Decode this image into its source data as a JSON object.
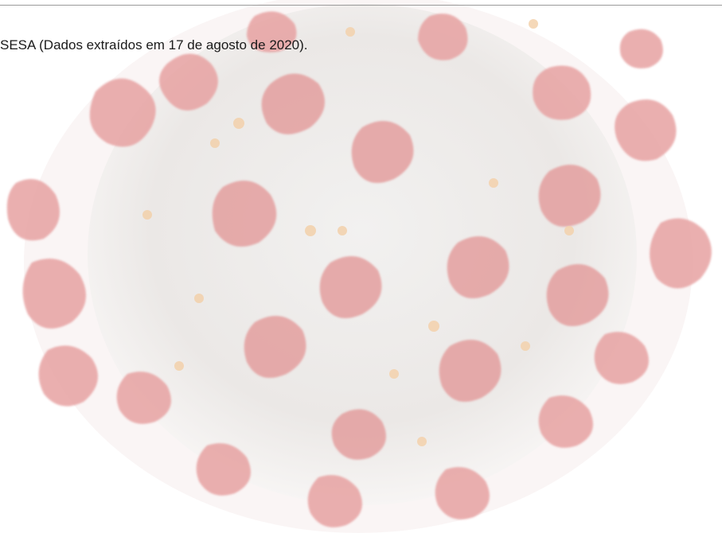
{
  "caption": {
    "text": "SESA (Dados extraídos em 17 de agosto de 2020)."
  },
  "background_image": {
    "icon": "coronavirus-illustration",
    "core_color": "#e9e6e4",
    "spike_color": "#e8a3a3",
    "dot_color": "#f3d3b0"
  },
  "divider": {
    "color": "#9a9a9a"
  }
}
